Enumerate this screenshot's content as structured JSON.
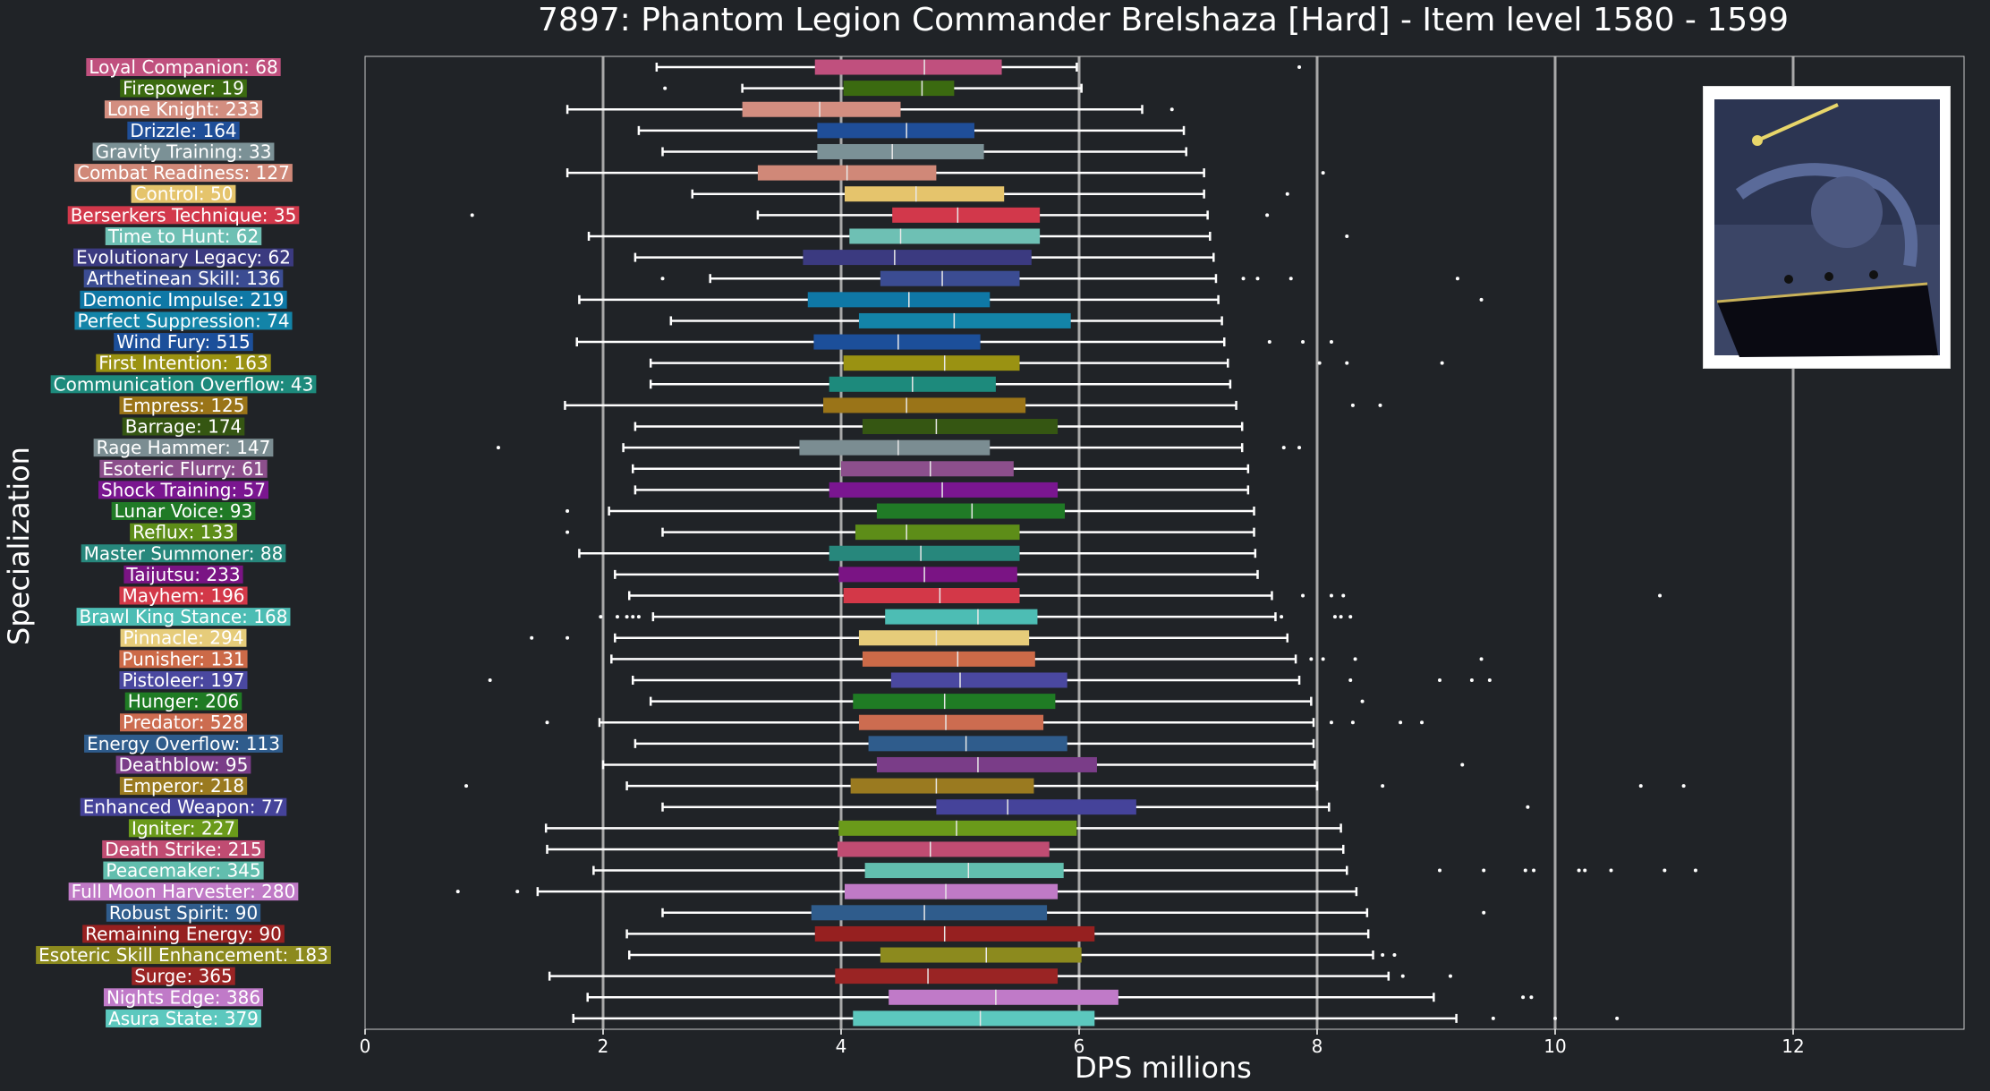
{
  "chart_data": {
    "type": "box",
    "title": "7897: Phantom Legion Commander Brelshaza [Hard] - Item level 1580 - 1599",
    "xlabel": "DPS millions",
    "ylabel": "Specialization",
    "xlim": [
      0,
      13.5
    ],
    "xticks": [
      0,
      2,
      4,
      6,
      8,
      10,
      12
    ],
    "grid_lines_x": [
      2,
      4,
      6,
      8,
      10,
      12
    ],
    "orientation": "horizontal",
    "background": "#202327",
    "series": [
      {
        "label": "Loyal Companion: 68",
        "color": "#c0507e",
        "whisker_low": 2.45,
        "q1": 3.78,
        "median": 4.7,
        "q3": 5.35,
        "whisker_high": 5.98,
        "outliers": [
          7.85
        ]
      },
      {
        "label": "Firepower: 19",
        "color": "#3b6a10",
        "whisker_low": 3.17,
        "q1": 4.02,
        "median": 4.68,
        "q3": 4.95,
        "whisker_high": 6.02,
        "outliers": [
          2.52
        ]
      },
      {
        "label": "Lone Knight: 233",
        "color": "#d38e80",
        "whisker_low": 1.7,
        "q1": 3.17,
        "median": 3.82,
        "q3": 4.5,
        "whisker_high": 6.53,
        "outliers": [
          6.78
        ]
      },
      {
        "label": "Drizzle: 164",
        "color": "#1f4e98",
        "whisker_low": 2.3,
        "q1": 3.8,
        "median": 4.55,
        "q3": 5.12,
        "whisker_high": 6.88,
        "outliers": []
      },
      {
        "label": "Gravity Training: 33",
        "color": "#7b9196",
        "whisker_low": 2.5,
        "q1": 3.8,
        "median": 4.43,
        "q3": 5.2,
        "whisker_high": 6.9,
        "outliers": []
      },
      {
        "label": "Combat Readiness: 127",
        "color": "#d08878",
        "whisker_low": 1.7,
        "q1": 3.3,
        "median": 4.05,
        "q3": 4.8,
        "whisker_high": 7.05,
        "outliers": [
          8.05
        ]
      },
      {
        "label": "Control: 50",
        "color": "#e5c46c",
        "whisker_low": 2.75,
        "q1": 4.03,
        "median": 4.63,
        "q3": 5.37,
        "whisker_high": 7.05,
        "outliers": [
          7.75
        ]
      },
      {
        "label": "Berserkers Technique: 35",
        "color": "#d2384b",
        "whisker_low": 3.3,
        "q1": 4.43,
        "median": 4.98,
        "q3": 5.67,
        "whisker_high": 7.08,
        "outliers": [
          0.9,
          7.58
        ]
      },
      {
        "label": "Time to Hunt: 62",
        "color": "#6ec0b4",
        "whisker_low": 1.88,
        "q1": 4.07,
        "median": 4.5,
        "q3": 5.67,
        "whisker_high": 7.1,
        "outliers": [
          8.25
        ]
      },
      {
        "label": "Evolutionary Legacy: 62",
        "color": "#3b3a80",
        "whisker_low": 2.27,
        "q1": 3.68,
        "median": 4.45,
        "q3": 5.6,
        "whisker_high": 7.13,
        "outliers": []
      },
      {
        "label": "Arthetinean Skill: 136",
        "color": "#3b4c92",
        "whisker_low": 2.9,
        "q1": 4.33,
        "median": 4.85,
        "q3": 5.5,
        "whisker_high": 7.15,
        "outliers": [
          2.5,
          7.38,
          7.5,
          7.78,
          9.18
        ]
      },
      {
        "label": "Demonic Impulse: 219",
        "color": "#0f78a6",
        "whisker_low": 1.8,
        "q1": 3.72,
        "median": 4.57,
        "q3": 5.25,
        "whisker_high": 7.17,
        "outliers": [
          9.38
        ]
      },
      {
        "label": "Perfect Suppression: 74",
        "color": "#1384a8",
        "whisker_low": 2.57,
        "q1": 4.15,
        "median": 4.95,
        "q3": 5.93,
        "whisker_high": 7.2,
        "outliers": []
      },
      {
        "label": "Wind Fury: 515",
        "color": "#1c4f9a",
        "whisker_low": 1.78,
        "q1": 3.77,
        "median": 4.48,
        "q3": 5.17,
        "whisker_high": 7.22,
        "outliers": [
          7.6,
          7.88,
          8.12
        ]
      },
      {
        "label": "First Intention: 163",
        "color": "#9a9212",
        "whisker_low": 2.4,
        "q1": 4.02,
        "median": 4.87,
        "q3": 5.5,
        "whisker_high": 7.25,
        "outliers": [
          8.02,
          8.25,
          9.05
        ]
      },
      {
        "label": "Communication Overflow: 43",
        "color": "#1d8a7c",
        "whisker_low": 2.4,
        "q1": 3.9,
        "median": 4.6,
        "q3": 5.3,
        "whisker_high": 7.27,
        "outliers": []
      },
      {
        "label": "Empress: 125",
        "color": "#9a7418",
        "whisker_low": 1.68,
        "q1": 3.85,
        "median": 4.55,
        "q3": 5.55,
        "whisker_high": 7.32,
        "outliers": [
          8.3,
          8.53
        ]
      },
      {
        "label": "Barrage: 174",
        "color": "#355612",
        "whisker_low": 2.27,
        "q1": 4.18,
        "median": 4.8,
        "q3": 5.82,
        "whisker_high": 7.37,
        "outliers": []
      },
      {
        "label": "Rage Hammer: 147",
        "color": "#7b8d92",
        "whisker_low": 2.17,
        "q1": 3.65,
        "median": 4.48,
        "q3": 5.25,
        "whisker_high": 7.37,
        "outliers": [
          1.12,
          7.72,
          7.85
        ]
      },
      {
        "label": "Esoteric Flurry: 61",
        "color": "#8c4f8c",
        "whisker_low": 2.25,
        "q1": 4.0,
        "median": 4.75,
        "q3": 5.45,
        "whisker_high": 7.42,
        "outliers": []
      },
      {
        "label": "Shock Training: 57",
        "color": "#7a1690",
        "whisker_low": 2.27,
        "q1": 3.9,
        "median": 4.85,
        "q3": 5.82,
        "whisker_high": 7.42,
        "outliers": []
      },
      {
        "label": "Lunar Voice: 93",
        "color": "#207a26",
        "whisker_low": 2.05,
        "q1": 4.3,
        "median": 5.1,
        "q3": 5.88,
        "whisker_high": 7.47,
        "outliers": [
          1.7
        ]
      },
      {
        "label": "Reflux: 133",
        "color": "#5d8d18",
        "whisker_low": 2.5,
        "q1": 4.12,
        "median": 4.55,
        "q3": 5.5,
        "whisker_high": 7.47,
        "outliers": [
          1.7
        ]
      },
      {
        "label": "Master Summoner: 88",
        "color": "#27877c",
        "whisker_low": 1.8,
        "q1": 3.9,
        "median": 4.67,
        "q3": 5.5,
        "whisker_high": 7.48,
        "outliers": []
      },
      {
        "label": "Taijutsu: 233",
        "color": "#7a1484",
        "whisker_low": 2.1,
        "q1": 3.98,
        "median": 4.7,
        "q3": 5.48,
        "whisker_high": 7.5,
        "outliers": []
      },
      {
        "label": "Mayhem: 196",
        "color": "#d33848",
        "whisker_low": 2.22,
        "q1": 4.02,
        "median": 4.83,
        "q3": 5.5,
        "whisker_high": 7.62,
        "outliers": [
          7.88,
          8.12,
          8.22,
          10.88
        ]
      },
      {
        "label": "Brawl King Stance: 168",
        "color": "#4dbdb4",
        "whisker_low": 2.42,
        "q1": 4.37,
        "median": 5.15,
        "q3": 5.65,
        "whisker_high": 7.65,
        "outliers": [
          1.98,
          2.12,
          2.2,
          2.25,
          2.3,
          7.7,
          8.15,
          8.2,
          8.28
        ]
      },
      {
        "label": "Pinnacle: 294",
        "color": "#e6cc7a",
        "whisker_low": 2.1,
        "q1": 4.15,
        "median": 4.8,
        "q3": 5.58,
        "whisker_high": 7.75,
        "outliers": [
          1.4,
          1.7
        ]
      },
      {
        "label": "Punisher: 131",
        "color": "#cc6a48",
        "whisker_low": 2.07,
        "q1": 4.18,
        "median": 4.98,
        "q3": 5.63,
        "whisker_high": 7.82,
        "outliers": [
          7.95,
          8.05,
          8.32,
          9.38
        ]
      },
      {
        "label": "Pistoleer: 197",
        "color": "#4a48a0",
        "whisker_low": 2.25,
        "q1": 4.42,
        "median": 5.0,
        "q3": 5.9,
        "whisker_high": 7.85,
        "outliers": [
          1.05,
          8.28,
          9.03,
          9.3,
          9.45
        ]
      },
      {
        "label": "Hunger: 206",
        "color": "#1f7b24",
        "whisker_low": 2.4,
        "q1": 4.1,
        "median": 4.87,
        "q3": 5.8,
        "whisker_high": 7.95,
        "outliers": [
          8.38
        ]
      },
      {
        "label": "Predator: 528",
        "color": "#cc6c50",
        "whisker_low": 1.97,
        "q1": 4.15,
        "median": 4.88,
        "q3": 5.7,
        "whisker_high": 7.97,
        "outliers": [
          1.53,
          8.12,
          8.3,
          8.7,
          8.88
        ]
      },
      {
        "label": "Energy Overflow: 113",
        "color": "#2f5c8c",
        "whisker_low": 2.27,
        "q1": 4.23,
        "median": 5.05,
        "q3": 5.9,
        "whisker_high": 7.97,
        "outliers": []
      },
      {
        "label": "Deathblow: 95",
        "color": "#7a3d88",
        "whisker_low": 2.0,
        "q1": 4.3,
        "median": 5.15,
        "q3": 6.15,
        "whisker_high": 7.98,
        "outliers": [
          9.22
        ]
      },
      {
        "label": "Emperor: 218",
        "color": "#9a7a20",
        "whisker_low": 2.2,
        "q1": 4.08,
        "median": 4.8,
        "q3": 5.62,
        "whisker_high": 8.0,
        "outliers": [
          0.85,
          8.55,
          10.72,
          11.08
        ]
      },
      {
        "label": "Enhanced Weapon: 77",
        "color": "#45439a",
        "whisker_low": 2.5,
        "q1": 4.8,
        "median": 5.4,
        "q3": 6.48,
        "whisker_high": 8.1,
        "outliers": [
          9.77
        ]
      },
      {
        "label": "Igniter: 227",
        "color": "#6a9a1a",
        "whisker_low": 1.52,
        "q1": 3.98,
        "median": 4.97,
        "q3": 5.98,
        "whisker_high": 8.2,
        "outliers": []
      },
      {
        "label": "Death Strike: 215",
        "color": "#c04c72",
        "whisker_low": 1.53,
        "q1": 3.97,
        "median": 4.75,
        "q3": 5.75,
        "whisker_high": 8.22,
        "outliers": []
      },
      {
        "label": "Peacemaker: 345",
        "color": "#62beae",
        "whisker_low": 1.92,
        "q1": 4.2,
        "median": 5.07,
        "q3": 5.87,
        "whisker_high": 8.25,
        "outliers": [
          9.03,
          9.4,
          9.75,
          9.82,
          10.2,
          10.25,
          10.47,
          10.92,
          11.18
        ]
      },
      {
        "label": "Full Moon Harvester: 280",
        "color": "#c07ac6",
        "whisker_low": 1.45,
        "q1": 4.03,
        "median": 4.88,
        "q3": 5.82,
        "whisker_high": 8.33,
        "outliers": [
          0.78,
          1.28
        ]
      },
      {
        "label": "Robust Spirit: 90",
        "color": "#2f5c8c",
        "whisker_low": 2.5,
        "q1": 3.75,
        "median": 4.7,
        "q3": 5.73,
        "whisker_high": 8.42,
        "outliers": [
          9.4
        ]
      },
      {
        "label": "Remaining Energy: 90",
        "color": "#962020",
        "whisker_low": 2.2,
        "q1": 3.78,
        "median": 4.87,
        "q3": 6.13,
        "whisker_high": 8.43,
        "outliers": []
      },
      {
        "label": "Esoteric Skill Enhancement: 183",
        "color": "#8c8a1e",
        "whisker_low": 2.22,
        "q1": 4.33,
        "median": 5.22,
        "q3": 6.02,
        "whisker_high": 8.47,
        "outliers": [
          8.55,
          8.65
        ]
      },
      {
        "label": "Surge: 365",
        "color": "#9a2424",
        "whisker_low": 1.55,
        "q1": 3.95,
        "median": 4.73,
        "q3": 5.82,
        "whisker_high": 8.6,
        "outliers": [
          8.72,
          9.12
        ]
      },
      {
        "label": "Nights Edge: 386",
        "color": "#c07ac8",
        "whisker_low": 1.87,
        "q1": 4.4,
        "median": 5.3,
        "q3": 6.33,
        "whisker_high": 8.98,
        "outliers": [
          9.73,
          9.8
        ]
      },
      {
        "label": "Asura State: 379",
        "color": "#5cc8be",
        "whisker_low": 1.75,
        "q1": 4.1,
        "median": 5.17,
        "q3": 6.13,
        "whisker_high": 9.17,
        "outliers": [
          9.48,
          10.0,
          10.52
        ]
      }
    ]
  }
}
